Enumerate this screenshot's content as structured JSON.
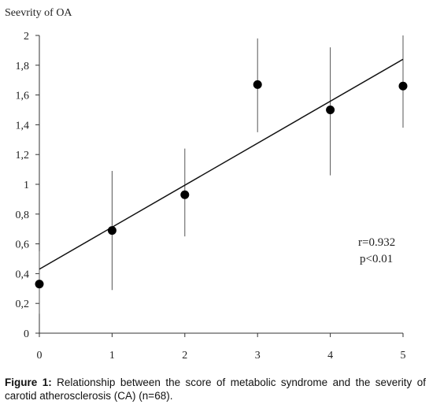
{
  "chart_data": {
    "type": "scatter",
    "ylabel": "Seevrity of OA",
    "xlabel": "",
    "x_ticks": [
      "0",
      "1",
      "2",
      "3",
      "4",
      "5"
    ],
    "y_ticks": [
      "0",
      "0,2",
      "0,4",
      "0,6",
      "0,8",
      "1",
      "1,2",
      "1,4",
      "1,6",
      "1,8",
      "2"
    ],
    "xlim": [
      0,
      5
    ],
    "ylim": [
      0,
      2
    ],
    "points": [
      {
        "x": 0,
        "y": 0.33,
        "err_low": 0.13,
        "err_high": 0.55
      },
      {
        "x": 1,
        "y": 0.69,
        "err_low": 0.29,
        "err_high": 1.09
      },
      {
        "x": 2,
        "y": 0.93,
        "err_low": 0.65,
        "err_high": 1.24
      },
      {
        "x": 3,
        "y": 1.67,
        "err_low": 1.35,
        "err_high": 1.98
      },
      {
        "x": 4,
        "y": 1.5,
        "err_low": 1.06,
        "err_high": 1.92
      },
      {
        "x": 5,
        "y": 1.66,
        "err_low": 1.38,
        "err_high": 2.0
      }
    ],
    "regression": {
      "x0": 0,
      "y0": 0.43,
      "x1": 5,
      "y1": 1.84
    },
    "annotations": [
      "r=0.932",
      "p<0.01"
    ],
    "grid": false,
    "legend": "none"
  },
  "caption": {
    "label": "Figure 1:",
    "text": " Relationship between the score of metabolic syndrome and the severity of carotid atherosclerosis (CA) (n=68)."
  }
}
